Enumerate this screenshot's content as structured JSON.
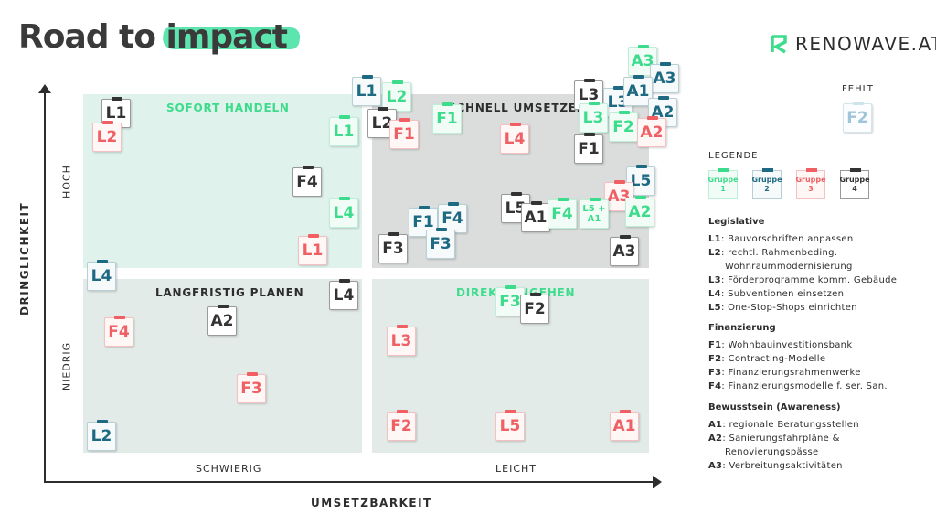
{
  "header": {
    "title_part1": "Road to ",
    "title_highlight": "impact",
    "brand": "RENOWAVE.AT",
    "accent_color": "#40e0a0"
  },
  "quadrants": {
    "q1": "SOFORT HANDELN",
    "q2": "SCHNELL UMSETZEN",
    "q3": "LANGFRISTIG PLANEN",
    "q4": "DIREKT ANGEHEN"
  },
  "axes": {
    "y_title": "DRINGLICHKEIT",
    "y_high": "HOCH",
    "y_low": "NIEDRIG",
    "x_title": "UMSETZBARKEIT",
    "x_left": "SCHWIERIG",
    "x_right": "LEICHT"
  },
  "notes": [
    {
      "id": "L1",
      "group": "g4"
    },
    {
      "id": "L2",
      "group": "g3"
    },
    {
      "id": "L1",
      "group": "g1"
    },
    {
      "id": "F4",
      "group": "g4"
    },
    {
      "id": "L4",
      "group": "g1"
    },
    {
      "id": "L1",
      "group": "g3"
    },
    {
      "id": "L1",
      "group": "g2"
    },
    {
      "id": "L2",
      "group": "g1"
    },
    {
      "id": "L2",
      "group": "g4"
    },
    {
      "id": "F1",
      "group": "g3"
    },
    {
      "id": "F1",
      "group": "g1"
    },
    {
      "id": "L4",
      "group": "g3"
    },
    {
      "id": "L3",
      "group": "g4"
    },
    {
      "id": "L3",
      "group": "g2"
    },
    {
      "id": "L3",
      "group": "g1"
    },
    {
      "id": "A3",
      "group": "g1"
    },
    {
      "id": "A3",
      "group": "g2"
    },
    {
      "id": "A1",
      "group": "g2"
    },
    {
      "id": "A2",
      "group": "g2"
    },
    {
      "id": "F2",
      "group": "g1"
    },
    {
      "id": "A2",
      "group": "g3"
    },
    {
      "id": "F1",
      "group": "g4"
    },
    {
      "id": "L5",
      "group": "g2"
    },
    {
      "id": "A3",
      "group": "g3"
    },
    {
      "id": "A2",
      "group": "g1"
    },
    {
      "id": "L5",
      "group": "g4"
    },
    {
      "id": "A1",
      "group": "g4"
    },
    {
      "id": "F4",
      "group": "g1"
    },
    {
      "id": "L5 +\nA1",
      "group": "g1"
    },
    {
      "id": "F1",
      "group": "g2"
    },
    {
      "id": "F4",
      "group": "g2"
    },
    {
      "id": "F3",
      "group": "g2"
    },
    {
      "id": "F3",
      "group": "g4"
    },
    {
      "id": "A3",
      "group": "g4"
    },
    {
      "id": "L4",
      "group": "g2"
    },
    {
      "id": "L4",
      "group": "g4"
    },
    {
      "id": "A2",
      "group": "g4"
    },
    {
      "id": "F4",
      "group": "g3"
    },
    {
      "id": "F3",
      "group": "g3"
    },
    {
      "id": "L2",
      "group": "g2"
    },
    {
      "id": "F3",
      "group": "g1"
    },
    {
      "id": "F2",
      "group": "g4"
    },
    {
      "id": "L3",
      "group": "g3"
    },
    {
      "id": "F2",
      "group": "g3"
    },
    {
      "id": "L5",
      "group": "g3"
    },
    {
      "id": "A1",
      "group": "g3"
    }
  ],
  "missing": {
    "label": "FEHLT",
    "id": "F2"
  },
  "legend": {
    "title": "LEGENDE",
    "groups": [
      {
        "label": "Gruppe 1",
        "group": "g1"
      },
      {
        "label": "Gruppe 2",
        "group": "g2"
      },
      {
        "label": "Gruppe 3",
        "group": "g3"
      },
      {
        "label": "Gruppe 4",
        "group": "g4"
      }
    ],
    "colors": {
      "g1": "#3ddc8c",
      "g2": "#1e6a82",
      "g3": "#ef5f63",
      "g4": "#333333"
    }
  },
  "sections": [
    {
      "heading": "Legislative",
      "items": [
        {
          "code": "L1",
          "text": ": Bauvorschriften anpassen"
        },
        {
          "code": "L2",
          "text": ": rechtl. Rahmenbeding."
        },
        {
          "code": "",
          "text": "Wohnraummodernisierung"
        },
        {
          "code": "L3",
          "text": ": Förderprogramme komm. Gebäude"
        },
        {
          "code": "L4",
          "text": ": Subventionen einsetzen"
        },
        {
          "code": "L5",
          "text": ": One-Stop-Shops einrichten"
        }
      ]
    },
    {
      "heading": "Finanzierung",
      "items": [
        {
          "code": "F1",
          "text": ": Wohnbauinvestitionsbank"
        },
        {
          "code": "F2",
          "text": ": Contracting-Modelle"
        },
        {
          "code": "F3",
          "text": ": Finanzierungsrahmenwerke"
        },
        {
          "code": "F4",
          "text": ": Finanzierungsmodelle f. ser. San."
        }
      ]
    },
    {
      "heading": "Bewusstsein (Awareness)",
      "items": [
        {
          "code": "A1",
          "text": ": regionale Beratungsstellen"
        },
        {
          "code": "A2",
          "text": ": Sanierungsfahrpläne &"
        },
        {
          "code": "",
          "text": "Renovierungspässe"
        },
        {
          "code": "A3",
          "text": ": Verbreitungsaktivitäten"
        }
      ]
    }
  ]
}
